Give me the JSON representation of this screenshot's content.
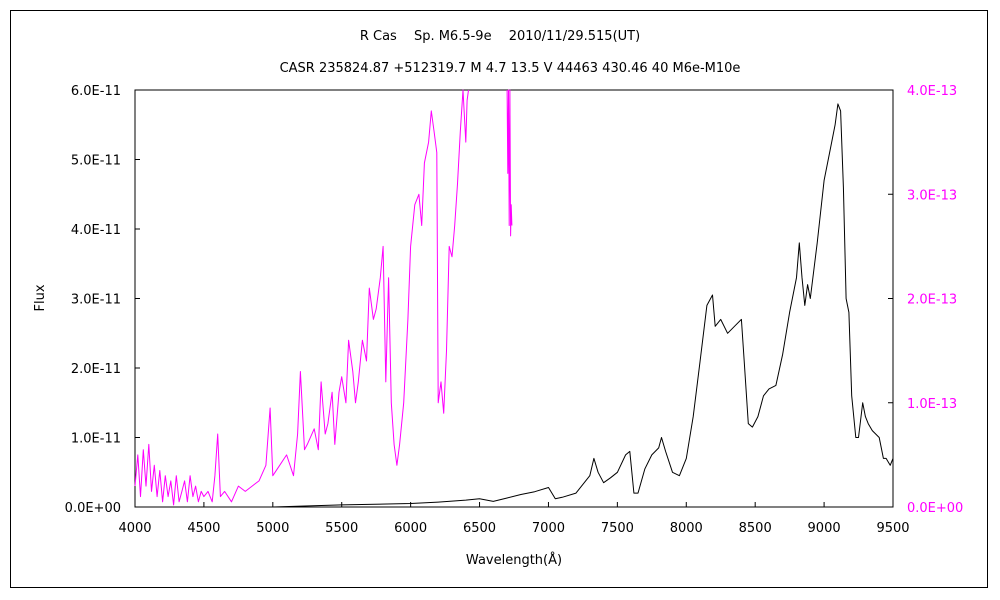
{
  "chart_data": {
    "type": "line",
    "title": "R Cas　 Sp. M6.5-9e　 2010/11/29.515(UT)",
    "subtitle": "CASR 235824.87 +512319.7 M 4.7 13.5 V 44463 430.46 40 M6e-M10e",
    "xlabel": "Wavelength(Å)",
    "ylabel": "Flux",
    "xlim": [
      4000,
      9500
    ],
    "ylim_left": [
      0,
      6e-11
    ],
    "ylim_right": [
      0,
      4e-13
    ],
    "x_ticks": [
      "4000",
      "4500",
      "5000",
      "5500",
      "6000",
      "6500",
      "7000",
      "7500",
      "8000",
      "8500",
      "9000",
      "9500"
    ],
    "y_ticks_left": [
      "0.0E+00",
      "1.0E-11",
      "2.0E-11",
      "3.0E-11",
      "4.0E-11",
      "5.0E-11",
      "6.0E-11"
    ],
    "y_ticks_right": [
      "0.0E+00",
      "1.0E-13",
      "2.0E-13",
      "3.0E-13",
      "4.0E-13"
    ],
    "grid": false,
    "series": [
      {
        "axis": "left",
        "color": "#000000",
        "x": [
          4800,
          5000,
          5500,
          6000,
          6200,
          6400,
          6500,
          6600,
          6700,
          6800,
          6900,
          7000,
          7050,
          7100,
          7200,
          7300,
          7330,
          7360,
          7400,
          7450,
          7500,
          7560,
          7590,
          7620,
          7650,
          7700,
          7750,
          7800,
          7820,
          7850,
          7900,
          7950,
          8000,
          8050,
          8100,
          8150,
          8190,
          8210,
          8250,
          8300,
          8350,
          8400,
          8420,
          8450,
          8480,
          8520,
          8560,
          8600,
          8650,
          8700,
          8750,
          8800,
          8820,
          8840,
          8860,
          8880,
          8900,
          8950,
          9000,
          9050,
          9080,
          9100,
          9120,
          9140,
          9160,
          9180,
          9200,
          9230,
          9250,
          9280,
          9300,
          9320,
          9350,
          9400,
          9430,
          9450,
          9480,
          9500
        ],
        "y": [
          0.0,
          0.0,
          3e-13,
          5e-13,
          7e-13,
          1e-12,
          1.2e-12,
          8e-13,
          1.3e-12,
          1.8e-12,
          2.2e-12,
          2.8e-12,
          1.2e-12,
          1.4e-12,
          2e-12,
          4.5e-12,
          7e-12,
          5e-12,
          3.5e-12,
          4.2e-12,
          5e-12,
          7.5e-12,
          8e-12,
          2e-12,
          2e-12,
          5.5e-12,
          7.5e-12,
          8.5e-12,
          1e-11,
          8e-12,
          5e-12,
          4.5e-12,
          7e-12,
          1.3e-11,
          2.1e-11,
          2.9e-11,
          3.05e-11,
          2.6e-11,
          2.7e-11,
          2.5e-11,
          2.6e-11,
          2.7e-11,
          2.1e-11,
          1.2e-11,
          1.15e-11,
          1.3e-11,
          1.6e-11,
          1.7e-11,
          1.75e-11,
          2.2e-11,
          2.8e-11,
          3.3e-11,
          3.8e-11,
          3.3e-11,
          2.9e-11,
          3.2e-11,
          3e-11,
          3.8e-11,
          4.7e-11,
          5.2e-11,
          5.5e-11,
          5.8e-11,
          5.7e-11,
          4.6e-11,
          3e-11,
          2.8e-11,
          1.6e-11,
          1e-11,
          1e-11,
          1.5e-11,
          1.3e-11,
          1.2e-11,
          1.1e-11,
          1e-11,
          7e-12,
          7e-12,
          6e-12,
          7e-12
        ]
      },
      {
        "axis": "right",
        "color": "#ff00ff",
        "x": [
          4000,
          4020,
          4040,
          4060,
          4080,
          4100,
          4120,
          4140,
          4160,
          4180,
          4200,
          4220,
          4240,
          4260,
          4280,
          4300,
          4320,
          4340,
          4360,
          4380,
          4400,
          4420,
          4440,
          4460,
          4480,
          4500,
          4530,
          4560,
          4580,
          4600,
          4620,
          4650,
          4700,
          4750,
          4800,
          4850,
          4900,
          4950,
          4980,
          5000,
          5050,
          5100,
          5150,
          5180,
          5200,
          5230,
          5250,
          5300,
          5330,
          5350,
          5380,
          5400,
          5430,
          5450,
          5480,
          5500,
          5530,
          5550,
          5580,
          5600,
          5620,
          5650,
          5680,
          5700,
          5730,
          5750,
          5780,
          5800,
          5820,
          5840,
          5860,
          5880,
          5900,
          5920,
          5950,
          5980,
          6000,
          6030,
          6060,
          6080,
          6100,
          6130,
          6150,
          6170,
          6190,
          6200,
          6220,
          6240,
          6260,
          6280,
          6300,
          6320,
          6340,
          6360,
          6380,
          6400,
          6410,
          6420
        ],
        "y": [
          2e-14,
          5e-14,
          1e-14,
          5.5e-14,
          2e-14,
          6e-14,
          1.5e-14,
          4e-14,
          1e-14,
          3.5e-14,
          5e-15,
          3e-14,
          1e-14,
          2.5e-14,
          2e-15,
          3e-14,
          5e-15,
          1.5e-14,
          2.5e-14,
          5e-15,
          3e-14,
          1e-14,
          2e-14,
          5e-15,
          1.5e-14,
          1e-14,
          1.5e-14,
          5e-15,
          3e-14,
          7e-14,
          1e-14,
          1.5e-14,
          5e-15,
          2e-14,
          1.5e-14,
          2e-14,
          2.5e-14,
          4e-14,
          9.5e-14,
          3e-14,
          4e-14,
          5e-14,
          3e-14,
          7e-14,
          1.3e-13,
          5.5e-14,
          6e-14,
          7.5e-14,
          5.5e-14,
          1.2e-13,
          7e-14,
          8e-14,
          1.1e-13,
          6e-14,
          1.1e-13,
          1.25e-13,
          1e-13,
          1.6e-13,
          1.3e-13,
          1e-13,
          1.2e-13,
          1.6e-13,
          1.4e-13,
          2.1e-13,
          1.8e-13,
          1.9e-13,
          2.2e-13,
          2.5e-13,
          1.2e-13,
          2.2e-13,
          1e-13,
          6e-14,
          4e-14,
          6e-14,
          1e-13,
          1.8e-13,
          2.5e-13,
          2.9e-13,
          3e-13,
          2.7e-13,
          3.3e-13,
          3.5e-13,
          3.8e-13,
          3.6e-13,
          3.4e-13,
          1e-13,
          1.2e-13,
          9e-14,
          1.5e-13,
          2.5e-13,
          2.4e-13,
          2.7e-13,
          3.1e-13,
          3.6e-13,
          4e-13,
          3.5e-13,
          3.9e-13,
          4e-13
        ]
      },
      {
        "axis": "right",
        "color": "#ff00ff",
        "x": [
          6700,
          6705,
          6710,
          6715,
          6720,
          6725,
          6730,
          6735
        ],
        "y": [
          4e-13,
          3.2e-13,
          4e-13,
          2.7e-13,
          4e-13,
          2.6e-13,
          2.9e-13,
          2.7e-13
        ]
      }
    ]
  }
}
